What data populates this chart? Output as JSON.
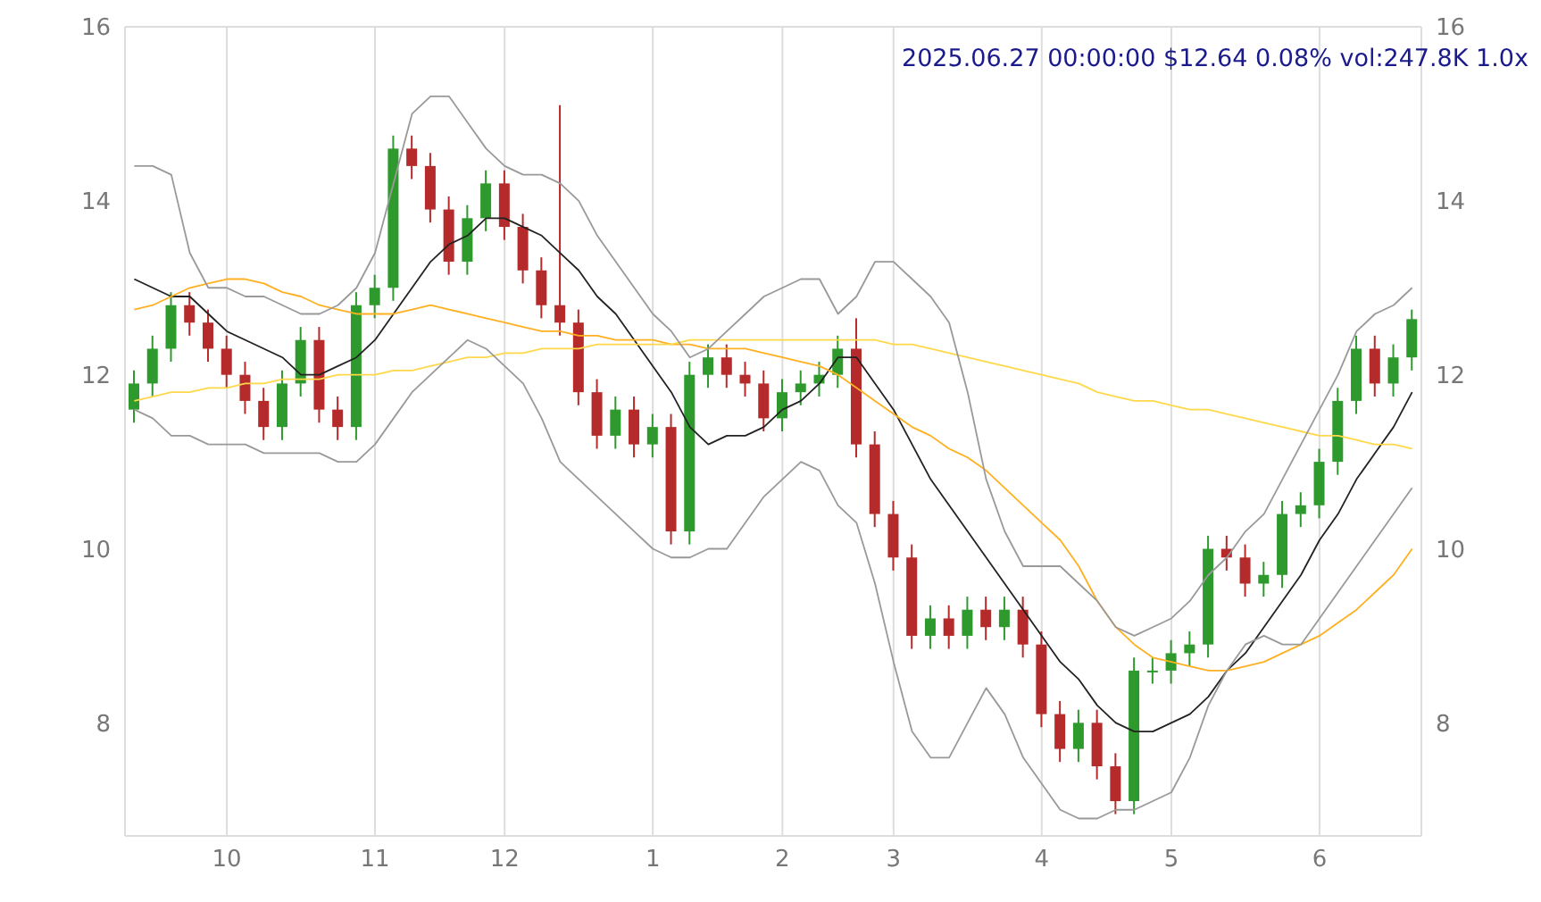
{
  "chart_data": {
    "type": "candlestick",
    "title": "2025.06.27 00:00:00 $12.64 0.08% vol:247.8K 1.0x",
    "categories": [
      null,
      null,
      null,
      null,
      null,
      "10",
      null,
      null,
      null,
      null,
      null,
      null,
      null,
      "11",
      null,
      null,
      null,
      null,
      null,
      null,
      "12",
      null,
      null,
      null,
      null,
      null,
      null,
      null,
      "1",
      null,
      null,
      null,
      null,
      null,
      null,
      "2",
      null,
      null,
      null,
      null,
      null,
      "3",
      null,
      null,
      null,
      null,
      null,
      null,
      null,
      "4",
      null,
      null,
      null,
      null,
      null,
      null,
      "5",
      null,
      null,
      null,
      null,
      null,
      null,
      null,
      "6",
      null,
      null,
      null,
      null,
      null
    ],
    "ohlc": [
      [
        11.6,
        12.05,
        11.45,
        11.9
      ],
      [
        11.9,
        12.45,
        11.75,
        12.3
      ],
      [
        12.3,
        12.95,
        12.15,
        12.8
      ],
      [
        12.8,
        12.95,
        12.45,
        12.6
      ],
      [
        12.6,
        12.75,
        12.15,
        12.3
      ],
      [
        12.3,
        12.45,
        11.85,
        12.0
      ],
      [
        12.0,
        12.15,
        11.55,
        11.7
      ],
      [
        11.7,
        11.85,
        11.25,
        11.4
      ],
      [
        11.4,
        12.05,
        11.25,
        11.9
      ],
      [
        11.9,
        12.55,
        11.75,
        12.4
      ],
      [
        12.4,
        12.55,
        11.45,
        11.6
      ],
      [
        11.6,
        11.75,
        11.25,
        11.4
      ],
      [
        11.4,
        12.95,
        11.25,
        12.8
      ],
      [
        12.8,
        13.15,
        12.65,
        13.0
      ],
      [
        13.0,
        14.75,
        12.85,
        14.6
      ],
      [
        14.6,
        14.75,
        14.25,
        14.4
      ],
      [
        14.4,
        14.55,
        13.75,
        13.9
      ],
      [
        13.9,
        14.05,
        13.15,
        13.3
      ],
      [
        13.3,
        13.95,
        13.15,
        13.8
      ],
      [
        13.8,
        14.35,
        13.65,
        14.2
      ],
      [
        14.2,
        14.35,
        13.55,
        13.7
      ],
      [
        13.7,
        13.85,
        13.05,
        13.2
      ],
      [
        13.2,
        13.35,
        12.65,
        12.8
      ],
      [
        12.8,
        15.1,
        12.45,
        12.6
      ],
      [
        12.6,
        12.75,
        11.65,
        11.8
      ],
      [
        11.8,
        11.95,
        11.15,
        11.3
      ],
      [
        11.3,
        11.75,
        11.15,
        11.6
      ],
      [
        11.6,
        11.75,
        11.05,
        11.2
      ],
      [
        11.2,
        11.55,
        11.05,
        11.4
      ],
      [
        11.4,
        11.55,
        10.05,
        10.2
      ],
      [
        10.2,
        12.15,
        10.05,
        12.0
      ],
      [
        12.0,
        12.35,
        11.85,
        12.2
      ],
      [
        12.2,
        12.35,
        11.85,
        12.0
      ],
      [
        12.0,
        12.15,
        11.75,
        11.9
      ],
      [
        11.9,
        12.05,
        11.35,
        11.5
      ],
      [
        11.5,
        11.95,
        11.35,
        11.8
      ],
      [
        11.8,
        12.05,
        11.65,
        11.9
      ],
      [
        11.9,
        12.15,
        11.75,
        12.0
      ],
      [
        12.0,
        12.45,
        11.85,
        12.3
      ],
      [
        12.3,
        12.65,
        11.05,
        11.2
      ],
      [
        11.2,
        11.35,
        10.25,
        10.4
      ],
      [
        10.4,
        10.55,
        9.75,
        9.9
      ],
      [
        9.9,
        10.05,
        8.85,
        9.0
      ],
      [
        9.0,
        9.35,
        8.85,
        9.2
      ],
      [
        9.2,
        9.35,
        8.85,
        9.0
      ],
      [
        9.0,
        9.45,
        8.85,
        9.3
      ],
      [
        9.3,
        9.45,
        8.95,
        9.1
      ],
      [
        9.1,
        9.45,
        8.95,
        9.3
      ],
      [
        9.3,
        9.45,
        8.75,
        8.9
      ],
      [
        8.9,
        9.05,
        7.95,
        8.1
      ],
      [
        8.1,
        8.25,
        7.55,
        7.7
      ],
      [
        7.7,
        8.15,
        7.55,
        8.0
      ],
      [
        8.0,
        8.15,
        7.35,
        7.5
      ],
      [
        7.5,
        7.65,
        6.95,
        7.1
      ],
      [
        7.1,
        8.75,
        6.95,
        8.6
      ],
      [
        8.6,
        8.75,
        8.45,
        8.6
      ],
      [
        8.6,
        8.95,
        8.45,
        8.8
      ],
      [
        8.8,
        9.05,
        8.65,
        8.9
      ],
      [
        8.9,
        10.15,
        8.75,
        10.0
      ],
      [
        10.0,
        10.15,
        9.75,
        9.9
      ],
      [
        9.9,
        10.05,
        9.45,
        9.6
      ],
      [
        9.6,
        9.85,
        9.45,
        9.7
      ],
      [
        9.7,
        10.55,
        9.55,
        10.4
      ],
      [
        10.4,
        10.65,
        10.25,
        10.5
      ],
      [
        10.5,
        11.15,
        10.35,
        11.0
      ],
      [
        11.0,
        11.85,
        10.85,
        11.7
      ],
      [
        11.7,
        12.45,
        11.55,
        12.3
      ],
      [
        12.3,
        12.45,
        11.75,
        11.9
      ],
      [
        11.9,
        12.35,
        11.75,
        12.2
      ],
      [
        12.2,
        12.75,
        12.05,
        12.64
      ]
    ],
    "colors": [
      "#2e9a2e",
      "#2e9a2e",
      "#2e9a2e",
      "#b52a2a",
      "#b52a2a",
      "#b52a2a",
      "#b52a2a",
      "#b52a2a",
      "#2e9a2e",
      "#2e9a2e",
      "#b52a2a",
      "#b52a2a",
      "#2e9a2e",
      "#2e9a2e",
      "#2e9a2e",
      "#b52a2a",
      "#b52a2a",
      "#b52a2a",
      "#2e9a2e",
      "#2e9a2e",
      "#b52a2a",
      "#b52a2a",
      "#b52a2a",
      "#b52a2a",
      "#b52a2a",
      "#b52a2a",
      "#2e9a2e",
      "#b52a2a",
      "#2e9a2e",
      "#b52a2a",
      "#2e9a2e",
      "#2e9a2e",
      "#b52a2a",
      "#b52a2a",
      "#b52a2a",
      "#2e9a2e",
      "#2e9a2e",
      "#2e9a2e",
      "#2e9a2e",
      "#b52a2a",
      "#b52a2a",
      "#b52a2a",
      "#b52a2a",
      "#2e9a2e",
      "#b52a2a",
      "#2e9a2e",
      "#b52a2a",
      "#2e9a2e",
      "#b52a2a",
      "#b52a2a",
      "#b52a2a",
      "#2e9a2e",
      "#b52a2a",
      "#b52a2a",
      "#2e9a2e",
      "#2e9a2e",
      "#2e9a2e",
      "#2e9a2e",
      "#2e9a2e",
      "#b52a2a",
      "#b52a2a",
      "#2e9a2e",
      "#2e9a2e",
      "#2e9a2e",
      "#2e9a2e",
      "#2e9a2e",
      "#2e9a2e",
      "#b52a2a",
      "#2e9a2e",
      "#2e9a2e"
    ],
    "series": [
      {
        "type": "line",
        "color": "#222222",
        "values": [
          13.1,
          13.0,
          12.9,
          12.9,
          12.7,
          12.5,
          12.4,
          12.3,
          12.2,
          12.0,
          12.0,
          12.1,
          12.2,
          12.4,
          12.7,
          13.0,
          13.3,
          13.5,
          13.6,
          13.8,
          13.8,
          13.7,
          13.6,
          13.4,
          13.2,
          12.9,
          12.7,
          12.4,
          12.1,
          11.8,
          11.4,
          11.2,
          11.3,
          11.3,
          11.4,
          11.6,
          11.7,
          11.9,
          12.2,
          12.2,
          11.9,
          11.6,
          11.2,
          10.8,
          10.5,
          10.2,
          9.9,
          9.6,
          9.3,
          9.0,
          8.7,
          8.5,
          8.2,
          8.0,
          7.9,
          7.9,
          8.0,
          8.1,
          8.3,
          8.6,
          8.8,
          9.1,
          9.4,
          9.7,
          10.1,
          10.4,
          10.8,
          11.1,
          11.4,
          11.8
        ]
      },
      {
        "type": "line",
        "color": "#ffb020",
        "values": [
          12.75,
          12.8,
          12.9,
          13.0,
          13.05,
          13.1,
          13.1,
          13.05,
          12.95,
          12.9,
          12.8,
          12.75,
          12.7,
          12.7,
          12.7,
          12.75,
          12.8,
          12.75,
          12.7,
          12.65,
          12.6,
          12.55,
          12.5,
          12.5,
          12.45,
          12.45,
          12.4,
          12.4,
          12.4,
          12.35,
          12.35,
          12.3,
          12.3,
          12.3,
          12.25,
          12.2,
          12.15,
          12.1,
          12.0,
          11.85,
          11.7,
          11.55,
          11.4,
          11.3,
          11.15,
          11.05,
          10.9,
          10.7,
          10.5,
          10.3,
          10.1,
          9.8,
          9.4,
          9.1,
          8.9,
          8.75,
          8.7,
          8.65,
          8.6,
          8.6,
          8.65,
          8.7,
          8.8,
          8.9,
          9.0,
          9.15,
          9.3,
          9.5,
          9.7,
          10.0
        ]
      },
      {
        "type": "line",
        "color": "#ffd84a",
        "values": [
          11.7,
          11.75,
          11.8,
          11.8,
          11.85,
          11.85,
          11.9,
          11.9,
          11.95,
          11.95,
          11.95,
          12.0,
          12.0,
          12.0,
          12.05,
          12.05,
          12.1,
          12.15,
          12.2,
          12.2,
          12.25,
          12.25,
          12.3,
          12.3,
          12.3,
          12.35,
          12.35,
          12.35,
          12.35,
          12.35,
          12.4,
          12.4,
          12.4,
          12.4,
          12.4,
          12.4,
          12.4,
          12.4,
          12.4,
          12.4,
          12.4,
          12.35,
          12.35,
          12.3,
          12.25,
          12.2,
          12.15,
          12.1,
          12.05,
          12.0,
          11.95,
          11.9,
          11.8,
          11.75,
          11.7,
          11.7,
          11.65,
          11.6,
          11.6,
          11.55,
          11.5,
          11.45,
          11.4,
          11.35,
          11.3,
          11.3,
          11.25,
          11.2,
          11.2,
          11.15
        ]
      },
      {
        "type": "line",
        "color": "#999999",
        "values": [
          14.4,
          14.4,
          14.3,
          13.4,
          13.0,
          13.0,
          12.9,
          12.9,
          12.8,
          12.7,
          12.7,
          12.8,
          13.0,
          13.4,
          14.2,
          15.0,
          15.2,
          15.2,
          14.9,
          14.6,
          14.4,
          14.3,
          14.3,
          14.2,
          14.0,
          13.6,
          13.3,
          13.0,
          12.7,
          12.5,
          12.2,
          12.3,
          12.5,
          12.7,
          12.9,
          13.0,
          13.1,
          13.1,
          12.7,
          12.9,
          13.3,
          13.3,
          13.1,
          12.9,
          12.6,
          11.8,
          10.8,
          10.2,
          9.8,
          9.8,
          9.8,
          9.6,
          9.4,
          9.1,
          9.0,
          9.1,
          9.2,
          9.4,
          9.7,
          9.9,
          10.2,
          10.4,
          10.8,
          11.2,
          11.6,
          12.0,
          12.5,
          12.7,
          12.8,
          13.0
        ]
      },
      {
        "type": "line",
        "color": "#999999",
        "values": [
          11.6,
          11.5,
          11.3,
          11.3,
          11.2,
          11.2,
          11.2,
          11.1,
          11.1,
          11.1,
          11.1,
          11.0,
          11.0,
          11.2,
          11.5,
          11.8,
          12.0,
          12.2,
          12.4,
          12.3,
          12.1,
          11.9,
          11.5,
          11.0,
          10.8,
          10.6,
          10.4,
          10.2,
          10.0,
          9.9,
          9.9,
          10.0,
          10.0,
          10.3,
          10.6,
          10.8,
          11.0,
          10.9,
          10.5,
          10.3,
          9.6,
          8.7,
          7.9,
          7.6,
          7.6,
          8.0,
          8.4,
          8.1,
          7.6,
          7.3,
          7.0,
          6.9,
          6.9,
          7.0,
          7.0,
          7.1,
          7.2,
          7.6,
          8.2,
          8.6,
          8.9,
          9.0,
          8.9,
          8.9,
          9.2,
          9.5,
          9.8,
          10.1,
          10.4,
          10.7
        ]
      }
    ],
    "ylim": [
      6.7,
      16
    ],
    "yticks": [
      8,
      10,
      12,
      14,
      16
    ],
    "y2lim": [
      6.7,
      16
    ],
    "y2ticks": [
      8,
      10,
      12,
      14,
      16
    ],
    "grid": true,
    "legend": false
  }
}
